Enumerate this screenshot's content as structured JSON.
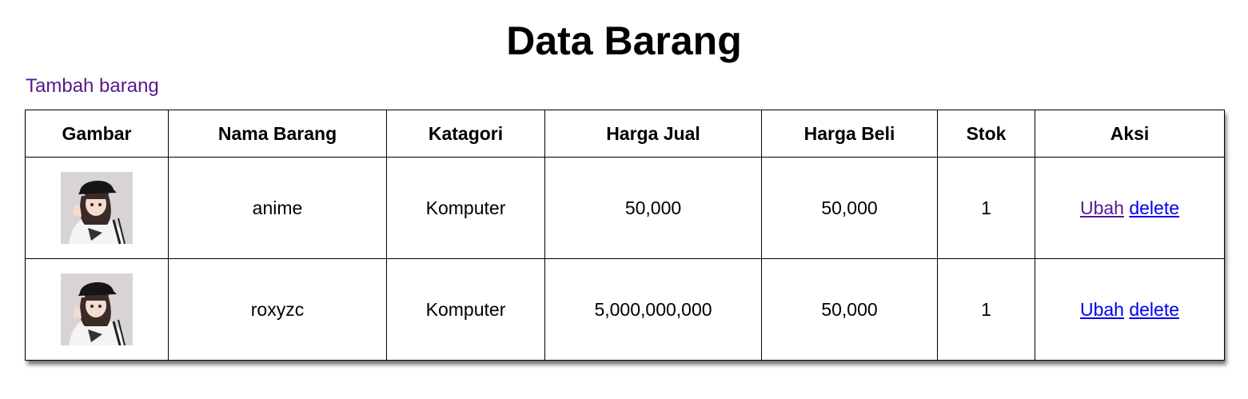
{
  "page": {
    "title": "Data Barang",
    "add_link": "Tambah barang"
  },
  "table": {
    "headers": [
      "Gambar",
      "Nama Barang",
      "Katagori",
      "Harga Jual",
      "Harga Beli",
      "Stok",
      "Aksi"
    ],
    "rows": [
      {
        "image": "anime-girl-thumbnail",
        "nama": "anime",
        "kategori": "Komputer",
        "harga_jual": "50,000",
        "harga_beli": "50,000",
        "stok": "1",
        "ubah": "Ubah",
        "delete": "delete"
      },
      {
        "image": "anime-girl-thumbnail",
        "nama": "roxyzc",
        "kategori": "Komputer",
        "harga_jual": "5,000,000,000",
        "harga_beli": "50,000",
        "stok": "1",
        "ubah": "Ubah",
        "delete": "delete"
      }
    ]
  },
  "colors": {
    "link": "#0000ee",
    "visited_link": "#551a8b",
    "border": "#000000"
  }
}
